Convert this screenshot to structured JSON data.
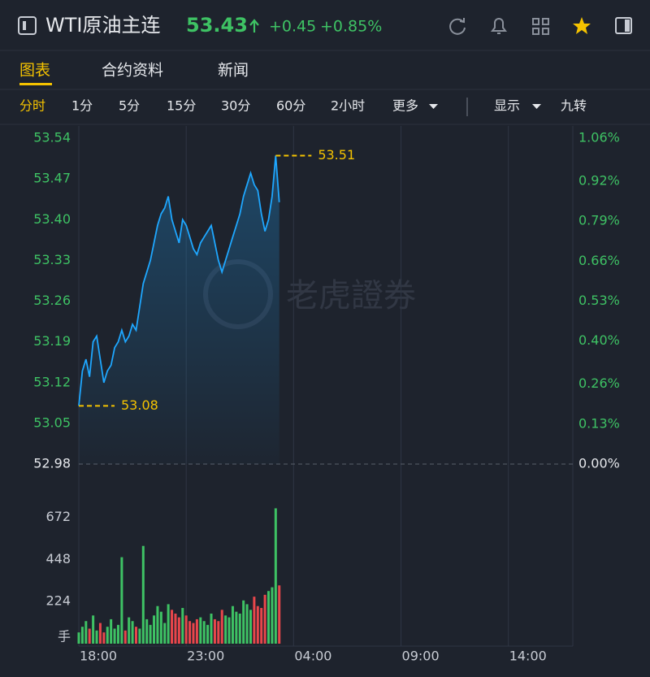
{
  "header": {
    "symbol": "WTI原油主连",
    "price": "53.43",
    "change": "+0.45",
    "change_pct": "+0.85%"
  },
  "tabs": [
    "图表",
    "合约资料",
    "新闻"
  ],
  "intervals": [
    "分时",
    "1分",
    "5分",
    "15分",
    "30分",
    "60分",
    "2小时",
    "更多"
  ],
  "options": [
    "显示",
    "九转"
  ],
  "watermark": "老虎證券",
  "chart_data": {
    "type": "line",
    "x": [
      0,
      10,
      20,
      30,
      40,
      50,
      60,
      70,
      80,
      90,
      100,
      110,
      120,
      130,
      140,
      150,
      160,
      170,
      180,
      190,
      200,
      210,
      220,
      230,
      240,
      250,
      260,
      270,
      280,
      290,
      300,
      310,
      320,
      330,
      340,
      350,
      360,
      370,
      380,
      390,
      400,
      410,
      420,
      430,
      440,
      450,
      460,
      470,
      480,
      490,
      500,
      510,
      520,
      530,
      540,
      550,
      560
    ],
    "series": [
      {
        "color": "#1ea7ff",
        "values": [
          53.08,
          53.14,
          53.16,
          53.13,
          53.19,
          53.2,
          53.16,
          53.12,
          53.14,
          53.15,
          53.18,
          53.19,
          53.21,
          53.19,
          53.2,
          53.22,
          53.21,
          53.25,
          53.29,
          53.31,
          53.33,
          53.36,
          53.39,
          53.41,
          53.42,
          53.44,
          53.4,
          53.38,
          53.36,
          53.4,
          53.39,
          53.37,
          53.35,
          53.34,
          53.36,
          53.37,
          53.38,
          53.39,
          53.36,
          53.33,
          53.31,
          53.33,
          53.35,
          53.37,
          53.39,
          53.41,
          53.44,
          53.46,
          53.48,
          53.46,
          53.45,
          53.41,
          53.38,
          53.4,
          53.44,
          53.51,
          53.43
        ]
      }
    ],
    "xlim": [
      0,
      1380
    ],
    "xticks": [
      {
        "value": 0,
        "label": "18:00"
      },
      {
        "value": 300,
        "label": "23:00"
      },
      {
        "value": 600,
        "label": "04:00"
      },
      {
        "value": 900,
        "label": "09:00"
      },
      {
        "value": 1200,
        "label": "14:00"
      }
    ],
    "ylim": [
      52.98,
      53.54
    ],
    "yticks": [
      52.98,
      53.05,
      53.12,
      53.19,
      53.26,
      53.33,
      {
        "value": 53.4,
        "label": "53.40"
      },
      53.47,
      53.54
    ],
    "y2lim": [
      0,
      1.06
    ],
    "y2ticks": [
      {
        "value": 0,
        "label": "0.00%"
      },
      {
        "value": 0.13,
        "label": "0.13%"
      },
      {
        "value": 0.26,
        "label": "0.26%"
      },
      {
        "value": 0.4,
        "label": "0.40%"
      },
      {
        "value": 0.53,
        "label": "0.53%"
      },
      {
        "value": 0.66,
        "label": "0.66%"
      },
      {
        "value": 0.79,
        "label": "0.79%"
      },
      {
        "value": 0.92,
        "label": "0.92%"
      },
      {
        "value": 1.06,
        "label": "1.06%"
      }
    ],
    "annotations": [
      {
        "value": 53.51
      },
      {
        "value": 53.08
      }
    ],
    "annotation_color": "#f5c300",
    "volume": {
      "values": [
        60,
        90,
        120,
        80,
        150,
        70,
        110,
        60,
        90,
        130,
        80,
        100,
        460,
        70,
        140,
        120,
        90,
        80,
        520,
        130,
        100,
        150,
        200,
        170,
        110,
        210,
        180,
        160,
        140,
        190,
        150,
        120,
        110,
        130,
        140,
        120,
        100,
        160,
        130,
        120,
        180,
        150,
        140,
        200,
        170,
        160,
        230,
        210,
        180,
        250,
        200,
        190,
        260,
        280,
        300,
        720,
        310
      ],
      "ylim": [
        0,
        830
      ],
      "yticks": [
        224,
        448,
        672
      ],
      "unit": "手",
      "colors": {
        "up": "#3ec264",
        "down": "#e8464b"
      }
    }
  }
}
